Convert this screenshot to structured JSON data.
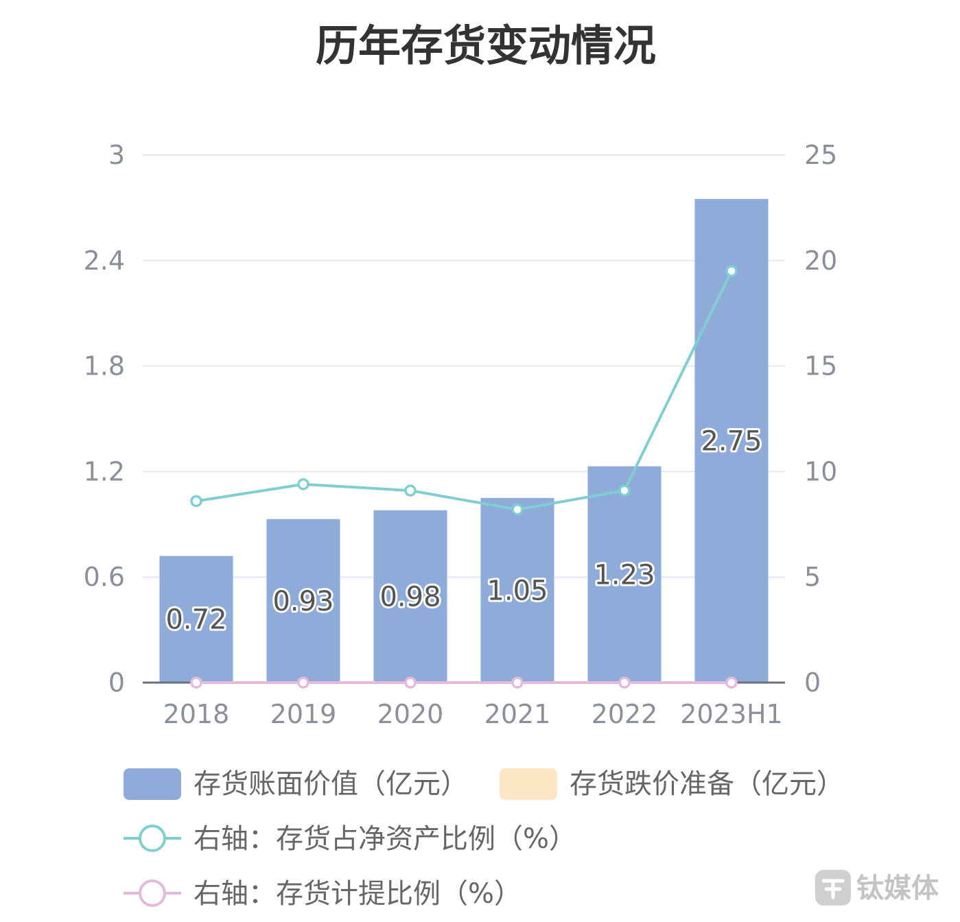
{
  "chart_data": {
    "type": "bar",
    "title": "历年存货变动情况",
    "categories": [
      "2018",
      "2019",
      "2020",
      "2021",
      "2022",
      "2023H1"
    ],
    "y_left": {
      "ylim": [
        0,
        3
      ],
      "ticks": [
        "0",
        "0.6",
        "1.2",
        "1.8",
        "2.4",
        "3"
      ]
    },
    "y_right": {
      "ylim": [
        0,
        25
      ],
      "ticks": [
        "0",
        "5",
        "10",
        "15",
        "20",
        "25"
      ]
    },
    "grid": true,
    "legend_position": "bottom",
    "series": [
      {
        "name": "存货账面价值（亿元）",
        "type": "bar",
        "axis": "left",
        "color": "#8eabda",
        "values": [
          0.72,
          0.93,
          0.98,
          1.05,
          1.23,
          2.75
        ],
        "labels": [
          "0.72",
          "0.93",
          "0.98",
          "1.05",
          "1.23",
          "2.75"
        ]
      },
      {
        "name": "存货跌价准备（亿元）",
        "type": "bar",
        "axis": "left",
        "color": "#fde6c2",
        "values": [
          0,
          0,
          0,
          0,
          0,
          0
        ]
      },
      {
        "name": "右轴：存货占净资产比例（%）",
        "type": "line",
        "axis": "right",
        "color": "#7fcfd2",
        "values": [
          8.6,
          9.4,
          9.1,
          8.2,
          9.1,
          19.5
        ]
      },
      {
        "name": "右轴：存货计提比例（%）",
        "type": "line",
        "axis": "right",
        "color": "#e4b9dc",
        "values": [
          0,
          0,
          0,
          0,
          0,
          0
        ]
      }
    ]
  },
  "watermark": {
    "icon": "titanium-media-logo-icon",
    "text": "钛媒体"
  }
}
